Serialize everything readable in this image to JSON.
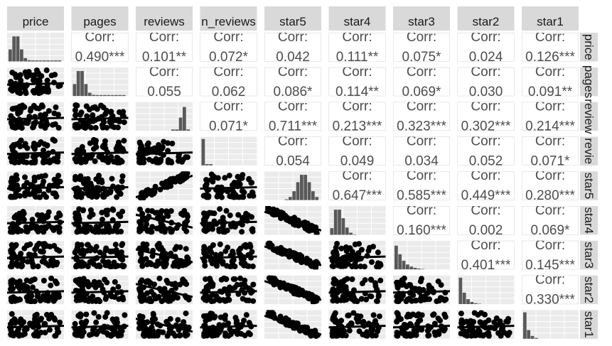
{
  "chart_data": {
    "type": "scatter-matrix",
    "variables": [
      "price",
      "pages",
      "reviews",
      "n_reviews",
      "star5",
      "star4",
      "star3",
      "star2",
      "star1"
    ],
    "row_strip_labels": [
      "price",
      "pages",
      "review",
      "revie",
      "star5",
      "star4",
      "star3",
      "star2",
      "star1"
    ],
    "column_strip_labels": [
      "price",
      "pages",
      "reviews",
      "n_reviews",
      "star5",
      "star4",
      "star3",
      "star2",
      "star1"
    ],
    "correlation_label": "Corr:",
    "correlations": [
      {
        "row": "price",
        "col": "pages",
        "value": "0.490***"
      },
      {
        "row": "price",
        "col": "reviews",
        "value": "0.101**"
      },
      {
        "row": "price",
        "col": "n_reviews",
        "value": "0.072*"
      },
      {
        "row": "price",
        "col": "star5",
        "value": "0.042"
      },
      {
        "row": "price",
        "col": "star4",
        "value": "0.111**"
      },
      {
        "row": "price",
        "col": "star3",
        "value": "0.075*"
      },
      {
        "row": "price",
        "col": "star2",
        "value": "0.024"
      },
      {
        "row": "price",
        "col": "star1",
        "value": "0.126***"
      },
      {
        "row": "pages",
        "col": "reviews",
        "value": "0.055"
      },
      {
        "row": "pages",
        "col": "n_reviews",
        "value": "0.062"
      },
      {
        "row": "pages",
        "col": "star5",
        "value": "0.086*"
      },
      {
        "row": "pages",
        "col": "star4",
        "value": "0.114**"
      },
      {
        "row": "pages",
        "col": "star3",
        "value": "0.069*"
      },
      {
        "row": "pages",
        "col": "star2",
        "value": "0.030"
      },
      {
        "row": "pages",
        "col": "star1",
        "value": "0.091**"
      },
      {
        "row": "reviews",
        "col": "n_reviews",
        "value": "0.071*"
      },
      {
        "row": "reviews",
        "col": "star5",
        "value": "0.711***"
      },
      {
        "row": "reviews",
        "col": "star4",
        "value": "0.213***"
      },
      {
        "row": "reviews",
        "col": "star3",
        "value": "0.323***"
      },
      {
        "row": "reviews",
        "col": "star2",
        "value": "0.302***"
      },
      {
        "row": "reviews",
        "col": "star1",
        "value": "0.214***"
      },
      {
        "row": "n_reviews",
        "col": "star5",
        "value": "0.054"
      },
      {
        "row": "n_reviews",
        "col": "star4",
        "value": "0.049"
      },
      {
        "row": "n_reviews",
        "col": "star3",
        "value": "0.034"
      },
      {
        "row": "n_reviews",
        "col": "star2",
        "value": "0.052"
      },
      {
        "row": "n_reviews",
        "col": "star1",
        "value": "0.071*"
      },
      {
        "row": "star5",
        "col": "star4",
        "value": "0.647***"
      },
      {
        "row": "star5",
        "col": "star3",
        "value": "0.585***"
      },
      {
        "row": "star5",
        "col": "star2",
        "value": "0.449***"
      },
      {
        "row": "star5",
        "col": "star1",
        "value": "0.280***"
      },
      {
        "row": "star4",
        "col": "star3",
        "value": "0.160***"
      },
      {
        "row": "star4",
        "col": "star2",
        "value": "0.002"
      },
      {
        "row": "star4",
        "col": "star1",
        "value": "0.069*"
      },
      {
        "row": "star3",
        "col": "star2",
        "value": "0.401***"
      },
      {
        "row": "star3",
        "col": "star1",
        "value": "0.145***"
      },
      {
        "row": "star2",
        "col": "star1",
        "value": "0.330***"
      }
    ],
    "grid": true,
    "colors": {
      "strip_background": "#d9d9d9",
      "panel_background": "#ebebeb",
      "grid_line": "#ffffff",
      "points": "#000000",
      "histogram_bars": "#595959",
      "corr_text": "#4d4d4d"
    }
  }
}
